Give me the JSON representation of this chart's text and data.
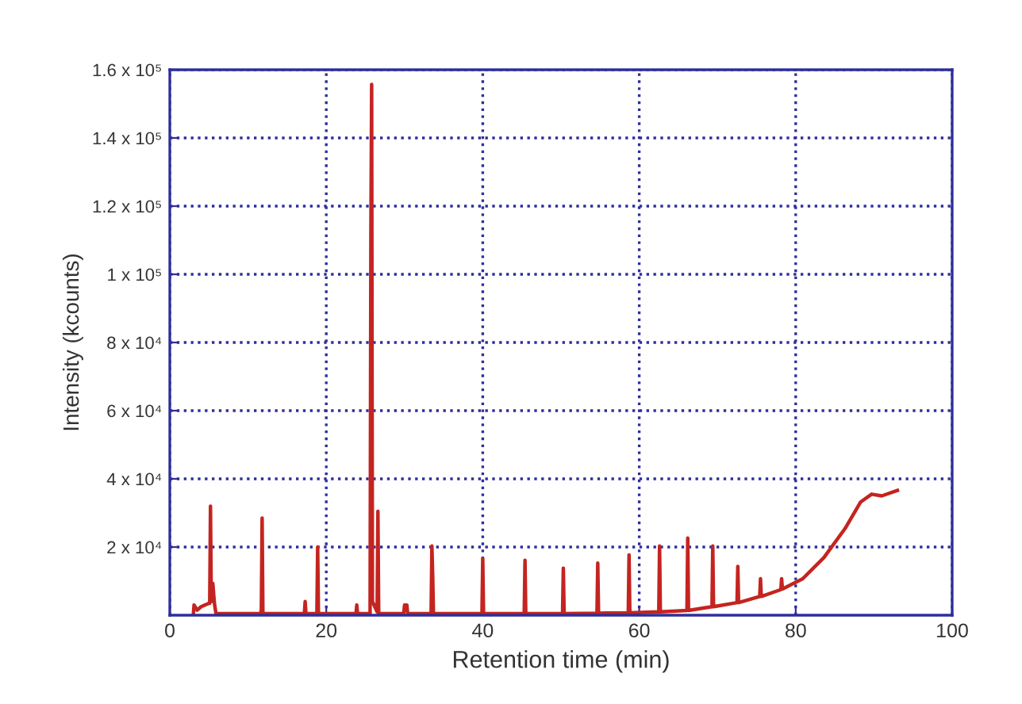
{
  "chart_data": {
    "type": "line",
    "xlabel": "Retention time (min)",
    "ylabel": "Intensity (kcounts)",
    "xlim": [
      0,
      100
    ],
    "xticks": [
      0,
      20,
      40,
      60,
      80,
      100
    ],
    "ylim": [
      0,
      160000
    ],
    "yticks": [
      {
        "value": 20000,
        "label": "2 x 10⁴"
      },
      {
        "value": 40000,
        "label": "4 x 10⁴"
      },
      {
        "value": 60000,
        "label": "6 x 10⁴"
      },
      {
        "value": 80000,
        "label": "8 x 10⁴"
      },
      {
        "value": 100000,
        "label": "1 x 10⁵"
      },
      {
        "value": 120000,
        "label": "1.2 x 10⁵"
      },
      {
        "value": 140000,
        "label": "1.4 x 10⁵"
      },
      {
        "value": 160000,
        "label": "1.6 x 10⁵"
      }
    ],
    "grid": true,
    "line_style": "solid",
    "marker": "none",
    "series": [
      {
        "color": "#c42420",
        "x": [
          3.0,
          3.1,
          3.5,
          4,
          5.0,
          5.1,
          5.2,
          5.3,
          5.5,
          5.7,
          5.9,
          11.6,
          11.7,
          11.8,
          11.9,
          17.2,
          17.3,
          17.4,
          18.8,
          18.9,
          19.0,
          23.8,
          23.9,
          24.0,
          25.6,
          25.7,
          25.8,
          25.9,
          26.5,
          26.6,
          26.7,
          29.9,
          30,
          30.3,
          30.4,
          33.4,
          33.5,
          33.6,
          33.7,
          39.9,
          40,
          40.1,
          45.3,
          45.4,
          45.5,
          50.2,
          50.3,
          50.4,
          54.6,
          54.7,
          54.8,
          58.6,
          58.7,
          58.8,
          62.5,
          62.6,
          62.7,
          66.1,
          66.2,
          66.3,
          69.3,
          69.4,
          69.5,
          72.5,
          72.6,
          72.7,
          75.4,
          75.5,
          75.6,
          78.1,
          78.2,
          78.3,
          80.9,
          83.6,
          86.3,
          88.3,
          89.7,
          91,
          93
        ],
        "values": [
          0,
          3000,
          1500,
          2500,
          3500,
          3500,
          32000,
          4000,
          9300,
          3500,
          500,
          500,
          1500,
          28500,
          500,
          500,
          4000,
          500,
          500,
          20000,
          500,
          500,
          3000,
          500,
          500,
          111500,
          155700,
          4000,
          1000,
          30500,
          500,
          500,
          3000,
          3000,
          500,
          500,
          20300,
          11600,
          500,
          500,
          16600,
          500,
          500,
          16100,
          500,
          500,
          13800,
          500,
          600,
          15300,
          600,
          700,
          17700,
          700,
          1000,
          20300,
          1000,
          1400,
          22600,
          1400,
          2500,
          20300,
          2500,
          3700,
          14300,
          3700,
          5500,
          10700,
          5500,
          7500,
          10700,
          7700,
          10700,
          16900,
          25400,
          33200,
          35500,
          35000,
          36600
        ]
      }
    ]
  }
}
